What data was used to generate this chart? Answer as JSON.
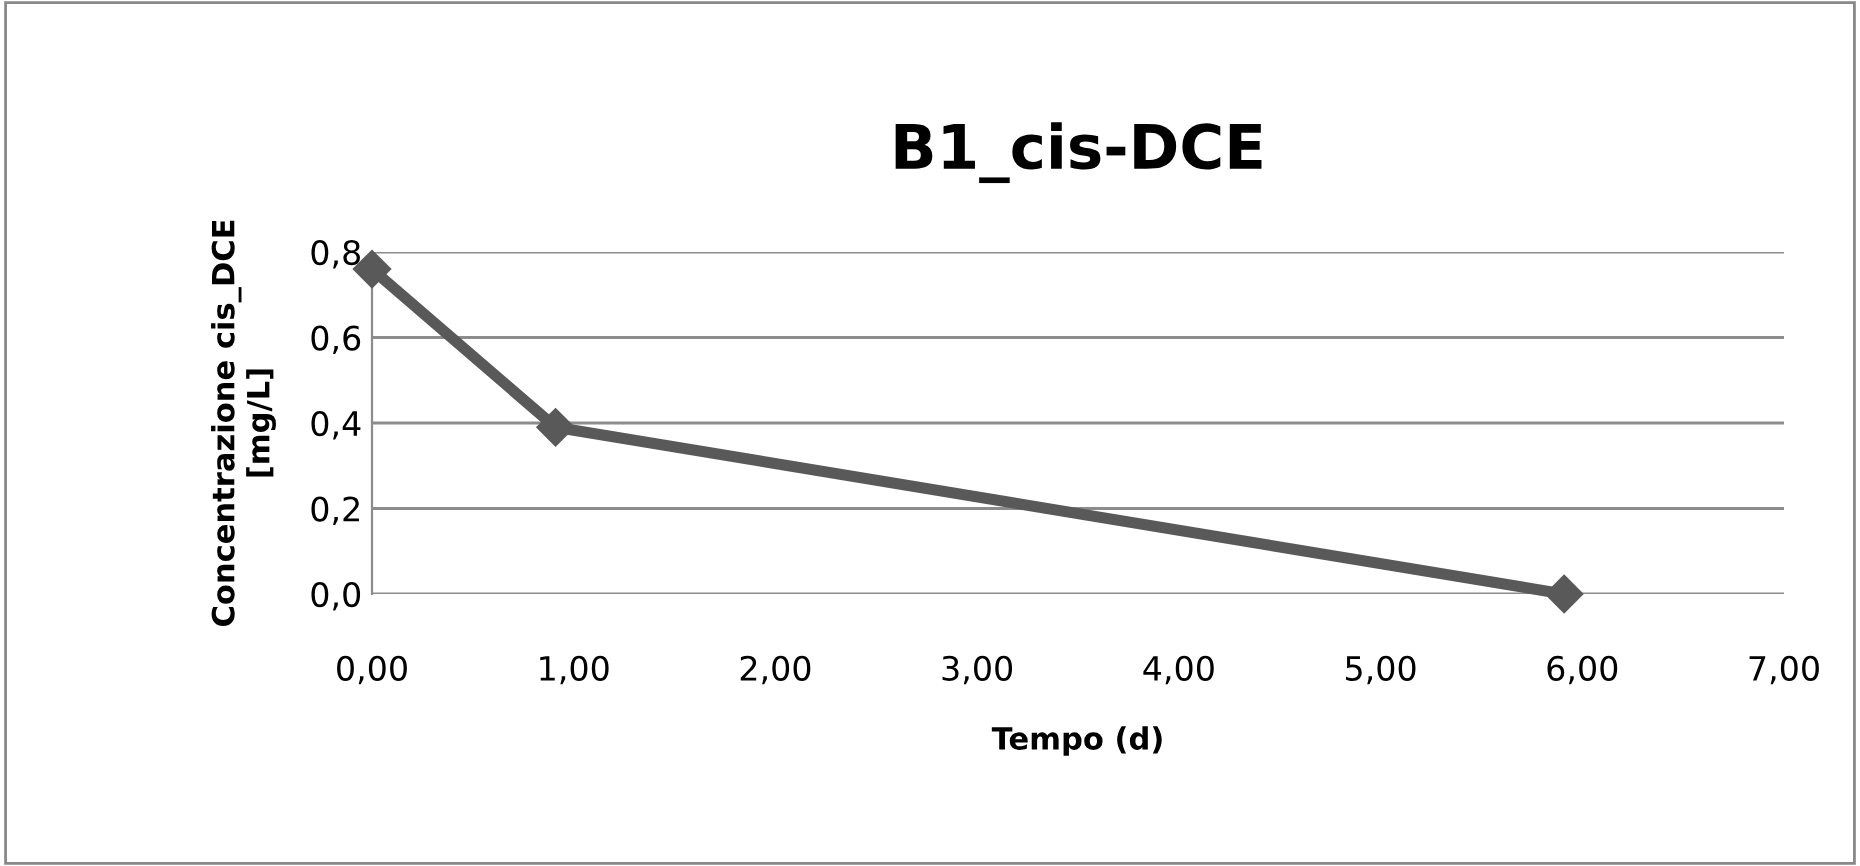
{
  "chart_data": {
    "type": "line",
    "title": "B1_cis-DCE",
    "xlabel": "Tempo (d)",
    "ylabel": "Concentrazione cis_DCE\n[mg/L]",
    "x": [
      0,
      0.91,
      5.91
    ],
    "series": [
      {
        "color": "#595959",
        "values": [
          0.76,
          0.39,
          0
        ]
      }
    ],
    "marker": "diamond",
    "line_style": "solid",
    "grid": "y",
    "legend": false,
    "xlim": [
      0,
      7
    ],
    "xticks": [
      {
        "value": 0,
        "label": "0,00"
      },
      {
        "value": 1,
        "label": "1,00"
      },
      {
        "value": 2,
        "label": "2,00"
      },
      {
        "value": 3,
        "label": "3,00"
      },
      {
        "value": 4,
        "label": "4,00"
      },
      {
        "value": 5,
        "label": "5,00"
      },
      {
        "value": 6,
        "label": "6,00"
      },
      {
        "value": 7,
        "label": "7,00"
      }
    ],
    "ylim": [
      0,
      0.8
    ],
    "yticks": [
      {
        "value": 0,
        "label": "0,0"
      },
      {
        "value": 0.2,
        "label": "0,2"
      },
      {
        "value": 0.4,
        "label": "0,4"
      },
      {
        "value": 0.6,
        "label": "0,6"
      },
      {
        "value": 0.8,
        "label": "0,8"
      }
    ]
  }
}
